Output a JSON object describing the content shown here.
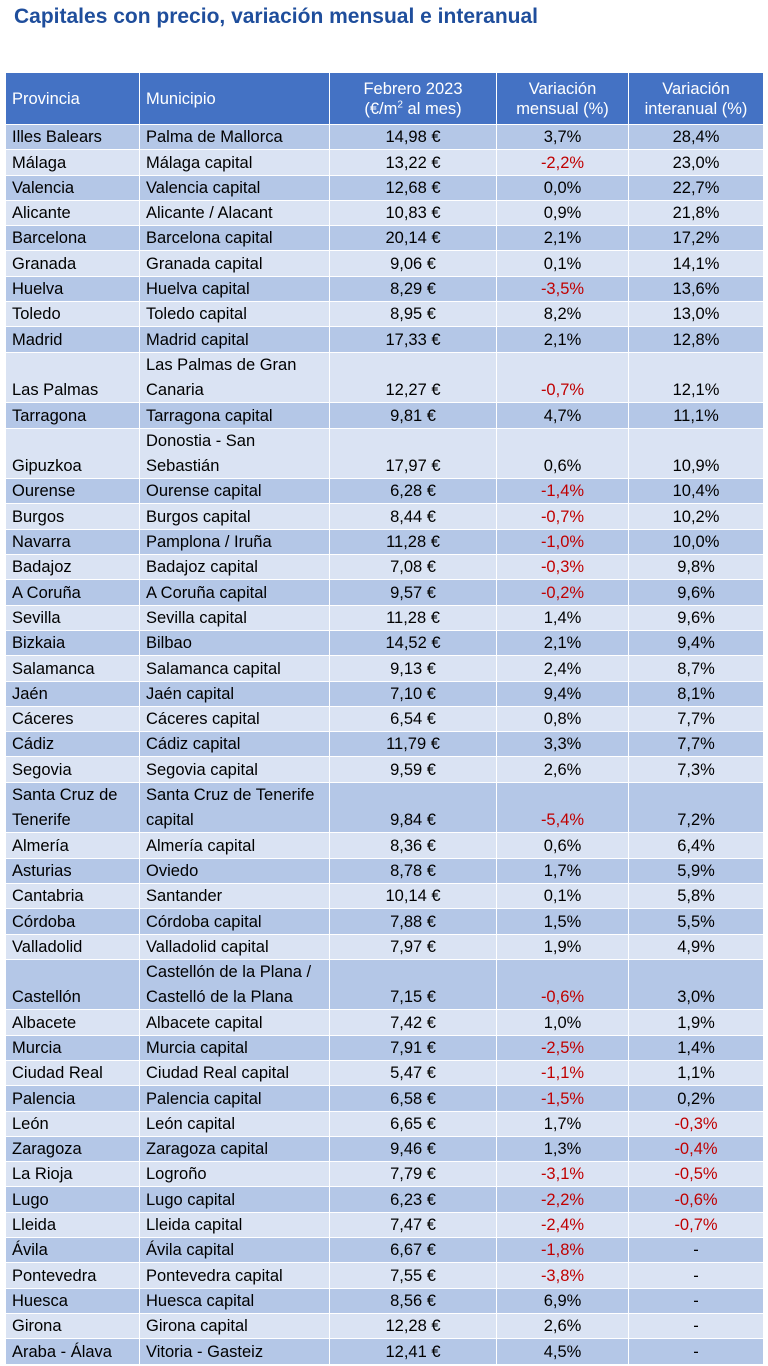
{
  "title": "Capitales con precio, variación mensual e interanual",
  "header": {
    "provincia": "Provincia",
    "municipio": "Municipio",
    "precio_line1": "Febrero 2023",
    "precio_line2_pre": "(€/m",
    "precio_sup": "2",
    "precio_line2_post": " al mes)",
    "mensual_line1": "Variación",
    "mensual_line2": "mensual (%)",
    "interanual_line1": "Variación",
    "interanual_line2": "interanual (%)"
  },
  "colors": {
    "header_bg": "#4472c4",
    "row_dark": "#b4c7e7",
    "row_light": "#dae3f3",
    "negative": "#c00000",
    "title": "#1f4e9c"
  },
  "rows": [
    {
      "provincia": "Illes Balears",
      "municipio": "Palma de Mallorca",
      "precio": "14,98 €",
      "mensual": "3,7%",
      "interanual": "28,4%"
    },
    {
      "provincia": "Málaga",
      "municipio": "Málaga capital",
      "precio": "13,22 €",
      "mensual": "-2,2%",
      "interanual": "23,0%"
    },
    {
      "provincia": "Valencia",
      "municipio": "Valencia capital",
      "precio": "12,68 €",
      "mensual": "0,0%",
      "interanual": "22,7%"
    },
    {
      "provincia": "Alicante",
      "municipio": "Alicante / Alacant",
      "precio": "10,83 €",
      "mensual": "0,9%",
      "interanual": "21,8%"
    },
    {
      "provincia": "Barcelona",
      "municipio": "Barcelona capital",
      "precio": "20,14 €",
      "mensual": "2,1%",
      "interanual": "17,2%"
    },
    {
      "provincia": "Granada",
      "municipio": "Granada capital",
      "precio": "9,06 €",
      "mensual": "0,1%",
      "interanual": "14,1%"
    },
    {
      "provincia": "Huelva",
      "municipio": "Huelva capital",
      "precio": "8,29 €",
      "mensual": "-3,5%",
      "interanual": "13,6%"
    },
    {
      "provincia": "Toledo",
      "municipio": "Toledo capital",
      "precio": "8,95 €",
      "mensual": "8,2%",
      "interanual": "13,0%"
    },
    {
      "provincia": "Madrid",
      "municipio": "Madrid capital",
      "precio": "17,33 €",
      "mensual": "2,1%",
      "interanual": "12,8%"
    },
    {
      "provincia": "Las Palmas",
      "municipio": "Las Palmas de Gran Canaria",
      "precio": "12,27 €",
      "mensual": "-0,7%",
      "interanual": "12,1%"
    },
    {
      "provincia": "Tarragona",
      "municipio": "Tarragona capital",
      "precio": "9,81 €",
      "mensual": "4,7%",
      "interanual": "11,1%"
    },
    {
      "provincia": "Gipuzkoa",
      "municipio": "Donostia - San Sebastián",
      "precio": "17,97 €",
      "mensual": "0,6%",
      "interanual": "10,9%"
    },
    {
      "provincia": "Ourense",
      "municipio": "Ourense capital",
      "precio": "6,28 €",
      "mensual": "-1,4%",
      "interanual": "10,4%"
    },
    {
      "provincia": "Burgos",
      "municipio": "Burgos capital",
      "precio": "8,44 €",
      "mensual": "-0,7%",
      "interanual": "10,2%"
    },
    {
      "provincia": "Navarra",
      "municipio": "Pamplona / Iruña",
      "precio": "11,28 €",
      "mensual": "-1,0%",
      "interanual": "10,0%"
    },
    {
      "provincia": "Badajoz",
      "municipio": "Badajoz capital",
      "precio": "7,08 €",
      "mensual": "-0,3%",
      "interanual": "9,8%"
    },
    {
      "provincia": "A Coruña",
      "municipio": "A Coruña capital",
      "precio": "9,57 €",
      "mensual": "-0,2%",
      "interanual": "9,6%"
    },
    {
      "provincia": "Sevilla",
      "municipio": "Sevilla capital",
      "precio": "11,28 €",
      "mensual": "1,4%",
      "interanual": "9,6%"
    },
    {
      "provincia": "Bizkaia",
      "municipio": "Bilbao",
      "precio": "14,52 €",
      "mensual": "2,1%",
      "interanual": "9,4%"
    },
    {
      "provincia": "Salamanca",
      "municipio": "Salamanca capital",
      "precio": "9,13 €",
      "mensual": "2,4%",
      "interanual": "8,7%"
    },
    {
      "provincia": "Jaén",
      "municipio": "Jaén capital",
      "precio": "7,10 €",
      "mensual": "9,4%",
      "interanual": "8,1%"
    },
    {
      "provincia": "Cáceres",
      "municipio": "Cáceres capital",
      "precio": "6,54 €",
      "mensual": "0,8%",
      "interanual": "7,7%"
    },
    {
      "provincia": "Cádiz",
      "municipio": "Cádiz capital",
      "precio": "11,79 €",
      "mensual": "3,3%",
      "interanual": "7,7%"
    },
    {
      "provincia": "Segovia",
      "municipio": "Segovia capital",
      "precio": "9,59 €",
      "mensual": "2,6%",
      "interanual": "7,3%"
    },
    {
      "provincia": "Santa Cruz de Tenerife",
      "municipio": "Santa Cruz de Tenerife capital",
      "precio": "9,84 €",
      "mensual": "-5,4%",
      "interanual": "7,2%"
    },
    {
      "provincia": "Almería",
      "municipio": "Almería capital",
      "precio": "8,36 €",
      "mensual": "0,6%",
      "interanual": "6,4%"
    },
    {
      "provincia": "Asturias",
      "municipio": "Oviedo",
      "precio": "8,78 €",
      "mensual": "1,7%",
      "interanual": "5,9%"
    },
    {
      "provincia": "Cantabria",
      "municipio": "Santander",
      "precio": "10,14 €",
      "mensual": "0,1%",
      "interanual": "5,8%"
    },
    {
      "provincia": "Córdoba",
      "municipio": "Córdoba capital",
      "precio": "7,88 €",
      "mensual": "1,5%",
      "interanual": "5,5%"
    },
    {
      "provincia": "Valladolid",
      "municipio": "Valladolid capital",
      "precio": "7,97 €",
      "mensual": "1,9%",
      "interanual": "4,9%"
    },
    {
      "provincia": "Castellón",
      "municipio": "Castellón de la Plana / Castelló de la Plana",
      "precio": "7,15 €",
      "mensual": "-0,6%",
      "interanual": "3,0%"
    },
    {
      "provincia": "Albacete",
      "municipio": "Albacete capital",
      "precio": "7,42 €",
      "mensual": "1,0%",
      "interanual": "1,9%"
    },
    {
      "provincia": "Murcia",
      "municipio": "Murcia capital",
      "precio": "7,91 €",
      "mensual": "-2,5%",
      "interanual": "1,4%"
    },
    {
      "provincia": "Ciudad Real",
      "municipio": "Ciudad Real capital",
      "precio": "5,47 €",
      "mensual": "-1,1%",
      "interanual": "1,1%"
    },
    {
      "provincia": "Palencia",
      "municipio": "Palencia capital",
      "precio": "6,58 €",
      "mensual": "-1,5%",
      "interanual": "0,2%"
    },
    {
      "provincia": "León",
      "municipio": "León capital",
      "precio": "6,65 €",
      "mensual": "1,7%",
      "interanual": "-0,3%"
    },
    {
      "provincia": "Zaragoza",
      "municipio": "Zaragoza capital",
      "precio": "9,46 €",
      "mensual": "1,3%",
      "interanual": "-0,4%"
    },
    {
      "provincia": "La Rioja",
      "municipio": "Logroño",
      "precio": "7,79 €",
      "mensual": "-3,1%",
      "interanual": "-0,5%"
    },
    {
      "provincia": "Lugo",
      "municipio": "Lugo capital",
      "precio": "6,23 €",
      "mensual": "-2,2%",
      "interanual": "-0,6%"
    },
    {
      "provincia": "Lleida",
      "municipio": "Lleida capital",
      "precio": "7,47 €",
      "mensual": "-2,4%",
      "interanual": "-0,7%"
    },
    {
      "provincia": "Ávila",
      "municipio": "Ávila capital",
      "precio": "6,67 €",
      "mensual": "-1,8%",
      "interanual": "-"
    },
    {
      "provincia": "Pontevedra",
      "municipio": "Pontevedra capital",
      "precio": "7,55 €",
      "mensual": "-3,8%",
      "interanual": "-"
    },
    {
      "provincia": "Huesca",
      "municipio": "Huesca capital",
      "precio": "8,56 €",
      "mensual": "6,9%",
      "interanual": "-"
    },
    {
      "provincia": "Girona",
      "municipio": "Girona capital",
      "precio": "12,28 €",
      "mensual": "2,6%",
      "interanual": "-"
    },
    {
      "provincia": "Araba - Álava",
      "municipio": "Vitoria - Gasteiz",
      "precio": "12,41 €",
      "mensual": "4,5%",
      "interanual": "-"
    }
  ]
}
